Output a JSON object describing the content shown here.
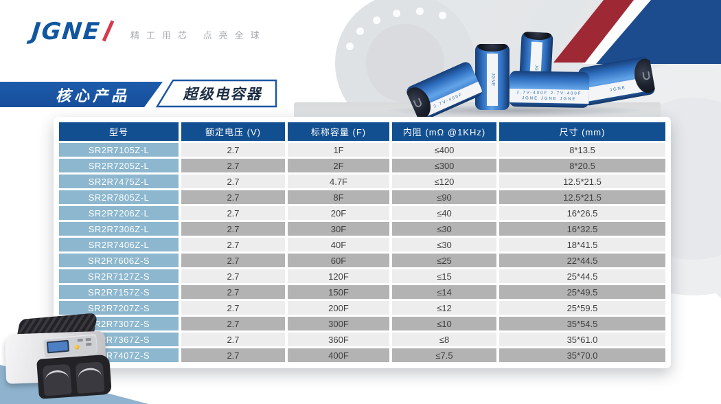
{
  "brand": {
    "logo_text": "JGNE",
    "slogan": "精工用芯  点亮全球",
    "brand_blue": "#1156a0",
    "accent_red": "#d63a4e"
  },
  "banner": {
    "primary": "核心产品",
    "secondary": "超级电容器",
    "banner_blue": "#1857a6"
  },
  "capacitors": {
    "brand": "JGNE",
    "rating": "2.7V-400F",
    "rating_row": "2.7V-400F  2.7V-400F",
    "brand_row": "JGNE   JGNE   JGNE"
  },
  "colors": {
    "table_header_blue": "#124f90",
    "model_cell_blue": "#8cb7ce",
    "row_light_gray": "#ededed",
    "row_dark_gray": "#b3b3b3",
    "corner_navy": "#1c4b8e",
    "corner_red": "#9e2833",
    "bottom_triangle_blue": "#8fb3ce"
  },
  "table": {
    "columns": [
      "型号",
      "额定电压 (V)",
      "标称容量 (F)",
      "内阻 (mΩ @1KHz)",
      "尺寸 (mm)"
    ],
    "rows": [
      {
        "model": "SR2R7105Z-L",
        "voltage": "2.7",
        "capacity": "1F",
        "resistance": "≤400",
        "size": "8*13.5"
      },
      {
        "model": "SR2R7205Z-L",
        "voltage": "2.7",
        "capacity": "2F",
        "resistance": "≤300",
        "size": "8*20.5"
      },
      {
        "model": "SR2R7475Z-L",
        "voltage": "2.7",
        "capacity": "4.7F",
        "resistance": "≤120",
        "size": "12.5*21.5"
      },
      {
        "model": "SR2R7805Z-L",
        "voltage": "2.7",
        "capacity": "8F",
        "resistance": "≤90",
        "size": "12.5*21.5"
      },
      {
        "model": "SR2R7206Z-L",
        "voltage": "2.7",
        "capacity": "20F",
        "resistance": "≤40",
        "size": "16*26.5"
      },
      {
        "model": "SR2R7306Z-L",
        "voltage": "2.7",
        "capacity": "30F",
        "resistance": "≤30",
        "size": "16*32.5"
      },
      {
        "model": "SR2R7406Z-L",
        "voltage": "2.7",
        "capacity": "40F",
        "resistance": "≤30",
        "size": "18*41.5"
      },
      {
        "model": "SR2R7606Z-S",
        "voltage": "2.7",
        "capacity": "60F",
        "resistance": "≤25",
        "size": "22*44.5"
      },
      {
        "model": "SR2R7127Z-S",
        "voltage": "2.7",
        "capacity": "120F",
        "resistance": "≤15",
        "size": "25*44.5"
      },
      {
        "model": "SR2R7157Z-S",
        "voltage": "2.7",
        "capacity": "150F",
        "resistance": "≤14",
        "size": "25*49.5"
      },
      {
        "model": "SR2R7207Z-S",
        "voltage": "2.7",
        "capacity": "200F",
        "resistance": "≤12",
        "size": "25*59.5"
      },
      {
        "model": "SR2R7307Z-S",
        "voltage": "2.7",
        "capacity": "300F",
        "resistance": "≤10",
        "size": "35*54.5"
      },
      {
        "model": "SR2R7367Z-S",
        "voltage": "2.7",
        "capacity": "360F",
        "resistance": "≤8",
        "size": "35*61.0"
      },
      {
        "model": "SR2R7407Z-S",
        "voltage": "2.7",
        "capacity": "400F",
        "resistance": "≤7.5",
        "size": "35*70.0"
      }
    ]
  }
}
